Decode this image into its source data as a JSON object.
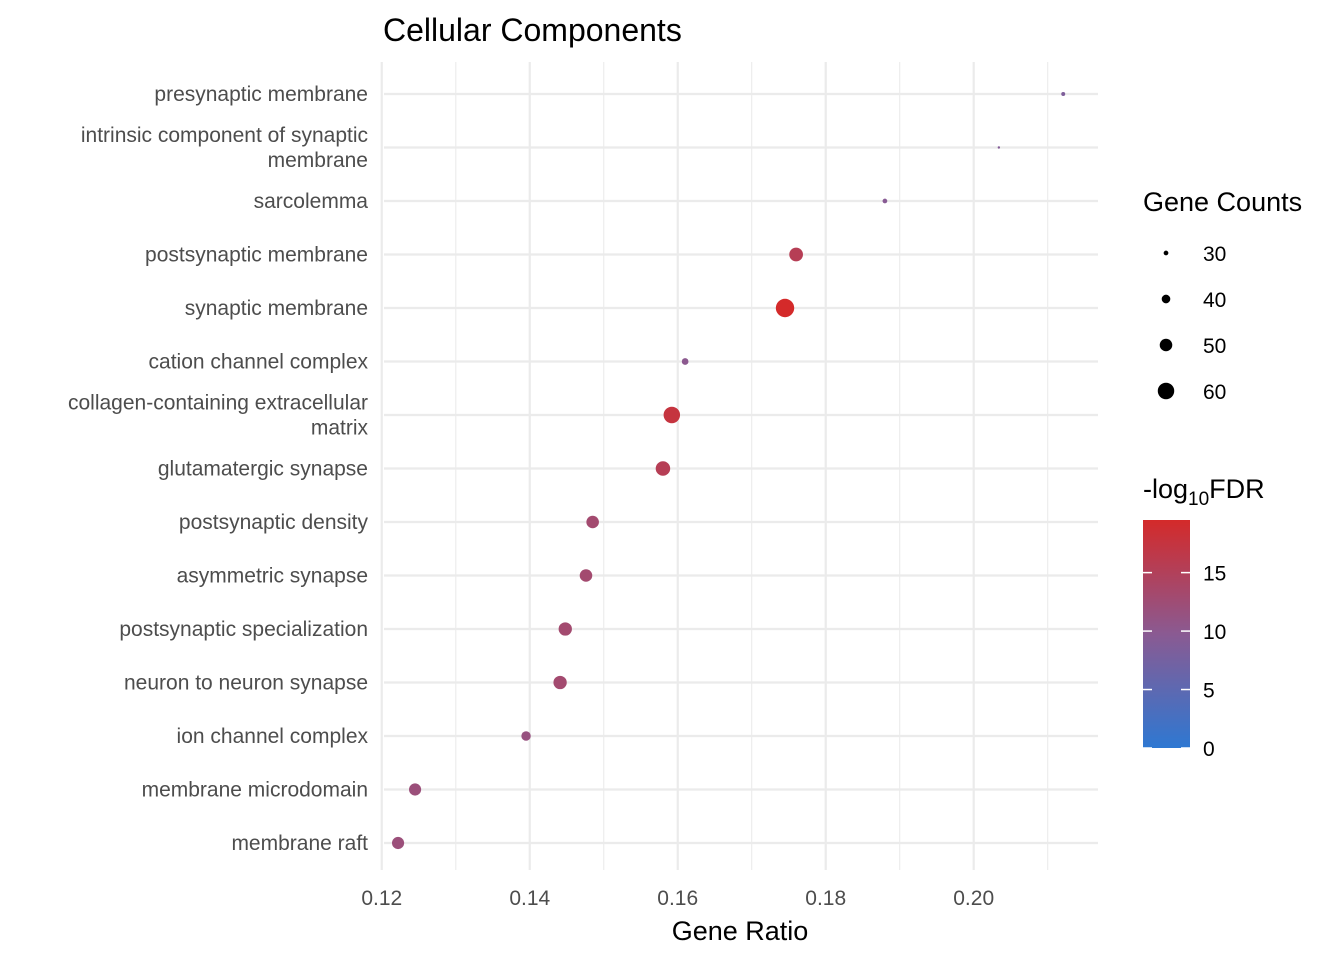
{
  "chart_data": {
    "type": "scatter",
    "title": "Cellular Components",
    "xlabel": "Gene Ratio",
    "ylabel": "",
    "xlim": [
      0.1203,
      0.2168
    ],
    "x_ticks": [
      0.12,
      0.14,
      0.16,
      0.18,
      0.2
    ],
    "x_tick_labels": [
      "0.12",
      "0.14",
      "0.16",
      "0.18",
      "0.20"
    ],
    "grid": true,
    "points": [
      {
        "term": [
          "presynaptic membrane"
        ],
        "gene_ratio": 0.2121,
        "gene_count": 28,
        "neg_log10_fdr": 8.5
      },
      {
        "term": [
          "intrinsic component of synaptic",
          "membrane"
        ],
        "gene_ratio": 0.2034,
        "gene_count": 24,
        "neg_log10_fdr": 9.0
      },
      {
        "term": [
          "sarcolemma"
        ],
        "gene_ratio": 0.188,
        "gene_count": 30,
        "neg_log10_fdr": 9.5
      },
      {
        "term": [
          "postsynaptic membrane"
        ],
        "gene_ratio": 0.176,
        "gene_count": 53,
        "neg_log10_fdr": 15.5
      },
      {
        "term": [
          "synaptic membrane"
        ],
        "gene_ratio": 0.1745,
        "gene_count": 65,
        "neg_log10_fdr": 19.5
      },
      {
        "term": [
          "cation channel complex"
        ],
        "gene_ratio": 0.161,
        "gene_count": 35,
        "neg_log10_fdr": 10.0
      },
      {
        "term": [
          "collagen-containing extracellular",
          "matrix"
        ],
        "gene_ratio": 0.1592,
        "gene_count": 60,
        "neg_log10_fdr": 17.5
      },
      {
        "term": [
          "glutamatergic synapse"
        ],
        "gene_ratio": 0.158,
        "gene_count": 55,
        "neg_log10_fdr": 15.5
      },
      {
        "term": [
          "postsynaptic density"
        ],
        "gene_ratio": 0.1485,
        "gene_count": 50,
        "neg_log10_fdr": 13.0
      },
      {
        "term": [
          "asymmetric synapse"
        ],
        "gene_ratio": 0.1476,
        "gene_count": 50,
        "neg_log10_fdr": 13.0
      },
      {
        "term": [
          "postsynaptic specialization"
        ],
        "gene_ratio": 0.1448,
        "gene_count": 52,
        "neg_log10_fdr": 13.0
      },
      {
        "term": [
          "neuron to neuron synapse"
        ],
        "gene_ratio": 0.1441,
        "gene_count": 52,
        "neg_log10_fdr": 13.0
      },
      {
        "term": [
          "ion channel complex"
        ],
        "gene_ratio": 0.1395,
        "gene_count": 42,
        "neg_log10_fdr": 11.5
      },
      {
        "term": [
          "membrane microdomain"
        ],
        "gene_ratio": 0.1245,
        "gene_count": 49,
        "neg_log10_fdr": 12.0
      },
      {
        "term": [
          "membrane raft"
        ],
        "gene_ratio": 0.1222,
        "gene_count": 49,
        "neg_log10_fdr": 12.0
      }
    ],
    "legend_size": {
      "title": "Gene Counts",
      "values": [
        30,
        40,
        50,
        60
      ],
      "labels": [
        "30",
        "40",
        "50",
        "60"
      ]
    },
    "legend_color": {
      "title_prefix": "-log",
      "title_sub": "10",
      "title_suffix": "FDR",
      "min": 0,
      "max": 19.5,
      "ticks": [
        0,
        5,
        10,
        15
      ],
      "tick_labels": [
        "0",
        "5",
        "10",
        "15"
      ],
      "colors": {
        "low": "#2e78d2",
        "mid": "#8a5a92",
        "high": "#d42a2a"
      }
    }
  }
}
